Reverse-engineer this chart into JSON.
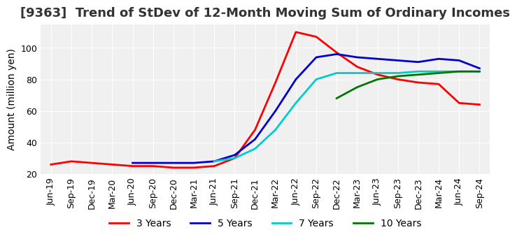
{
  "title": "[9363]  Trend of StDev of 12-Month Moving Sum of Ordinary Incomes",
  "ylabel": "Amount (million yen)",
  "line_colors": {
    "3yr": "#ff0000",
    "5yr": "#0000cc",
    "7yr": "#00cccc",
    "10yr": "#007700"
  },
  "legend_labels": [
    "3 Years",
    "5 Years",
    "7 Years",
    "10 Years"
  ],
  "background_color": "#ffffff",
  "plot_bg_color": "#f0f0f0",
  "ylim": [
    20,
    115
  ],
  "x_labels": [
    "Jun-19",
    "Sep-19",
    "Dec-19",
    "Mar-20",
    "Jun-20",
    "Sep-20",
    "Dec-20",
    "Mar-21",
    "Jun-21",
    "Sep-21",
    "Dec-21",
    "Mar-22",
    "Jun-22",
    "Sep-22",
    "Dec-22",
    "Mar-23",
    "Jun-23",
    "Sep-23",
    "Dec-23",
    "Mar-24",
    "Jun-24",
    "Sep-24"
  ],
  "x_3yr": [
    0,
    1,
    2,
    3,
    4,
    5,
    6,
    7,
    8,
    9,
    10,
    11,
    12,
    13,
    14,
    15,
    16,
    17,
    18,
    19,
    20,
    21
  ],
  "y_3yr": [
    26,
    28,
    27,
    26,
    25,
    25,
    24,
    24,
    25,
    30,
    48,
    78,
    110,
    107,
    97,
    88,
    83,
    80,
    78,
    77,
    65,
    64
  ],
  "x_5yr": [
    4,
    5,
    6,
    7,
    8,
    9,
    10,
    11,
    12,
    13,
    14,
    15,
    16,
    17,
    18,
    19,
    20,
    21
  ],
  "y_5yr": [
    27,
    27,
    27,
    27,
    28,
    32,
    42,
    60,
    80,
    94,
    96,
    94,
    93,
    92,
    91,
    93,
    92,
    87
  ],
  "x_7yr": [
    8,
    9,
    10,
    11,
    12,
    13,
    14,
    15,
    16,
    17,
    18,
    19,
    20,
    21
  ],
  "y_7yr": [
    28,
    30,
    36,
    48,
    65,
    80,
    84,
    84,
    84,
    84,
    85,
    85,
    85,
    85
  ],
  "x_10yr": [
    14,
    15,
    16,
    17,
    18,
    19,
    20,
    21
  ],
  "y_10yr": [
    68,
    75,
    80,
    82,
    83,
    84,
    85,
    85
  ],
  "title_fontsize": 13,
  "axis_fontsize": 10,
  "tick_fontsize": 9,
  "legend_fontsize": 10,
  "linewidth": 2.0
}
